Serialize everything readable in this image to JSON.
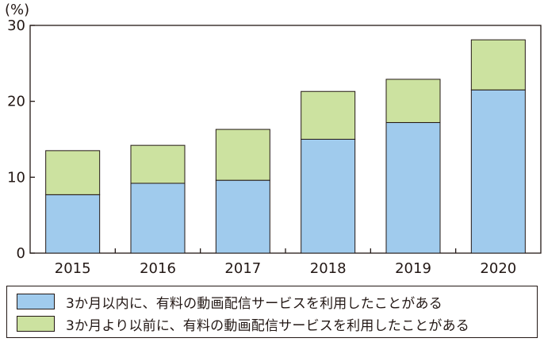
{
  "chart_data": {
    "type": "bar",
    "stacked": true,
    "unit_label": "(%)",
    "categories": [
      "2015",
      "2016",
      "2017",
      "2018",
      "2019",
      "2020"
    ],
    "ylim": [
      0,
      30
    ],
    "yticks": [
      0,
      10,
      20,
      30
    ],
    "grid": false,
    "legend_position": "bottom",
    "series": [
      {
        "name": "3か月以内に、有料の動画配信サービスを利用したことがある",
        "values": [
          7.7,
          9.2,
          9.6,
          15.0,
          17.2,
          21.5
        ],
        "color": "#a0cbed"
      },
      {
        "name": "3か月より以前に、有料の動画配信サービスを利用したことがある",
        "values": [
          5.8,
          5.0,
          6.7,
          6.3,
          5.7,
          6.6
        ],
        "color": "#cce2a0"
      }
    ]
  }
}
